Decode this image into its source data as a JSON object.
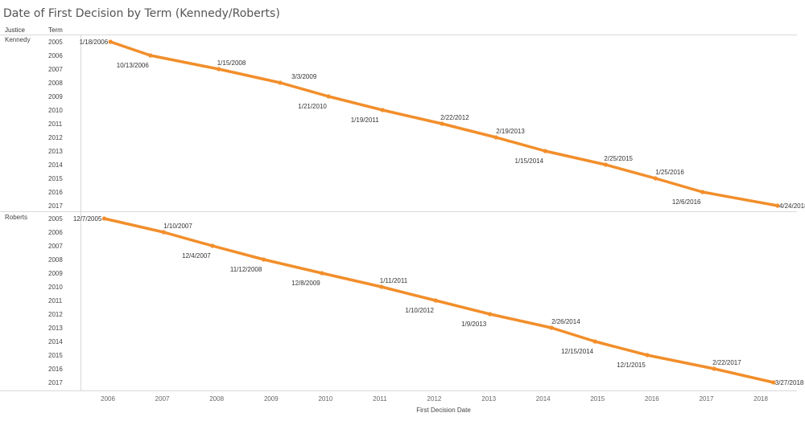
{
  "chart_data": {
    "type": "line",
    "title": "Date of First Decision by Term (Kennedy/Roberts)",
    "row_headers": [
      "Justice",
      "Term"
    ],
    "xlabel": "First Decision Date",
    "x_ticks": [
      "2006",
      "2007",
      "2008",
      "2009",
      "2010",
      "2011",
      "2012",
      "2013",
      "2014",
      "2015",
      "2016",
      "2017",
      "2018"
    ],
    "terms": [
      "2005",
      "2006",
      "2007",
      "2008",
      "2009",
      "2010",
      "2011",
      "2012",
      "2013",
      "2014",
      "2015",
      "2016",
      "2017"
    ],
    "color": "#f28e2b",
    "series": [
      {
        "name": "Kennedy",
        "dates": [
          "1/18/2006",
          "10/13/2006",
          "1/15/2008",
          "3/3/2009",
          "1/21/2010",
          "1/19/2011",
          "2/22/2012",
          "2/19/2013",
          "1/15/2014",
          "2/25/2015",
          "1/25/2016",
          "12/6/2016",
          "4/24/2018"
        ]
      },
      {
        "name": "Roberts",
        "dates": [
          "12/7/2005",
          "1/10/2007",
          "12/4/2007",
          "11/12/2008",
          "12/8/2009",
          "1/11/2011",
          "1/10/2012",
          "1/9/2013",
          "2/26/2014",
          "12/15/2014",
          "12/1/2015",
          "2/22/2017",
          "3/27/2018"
        ]
      }
    ]
  }
}
